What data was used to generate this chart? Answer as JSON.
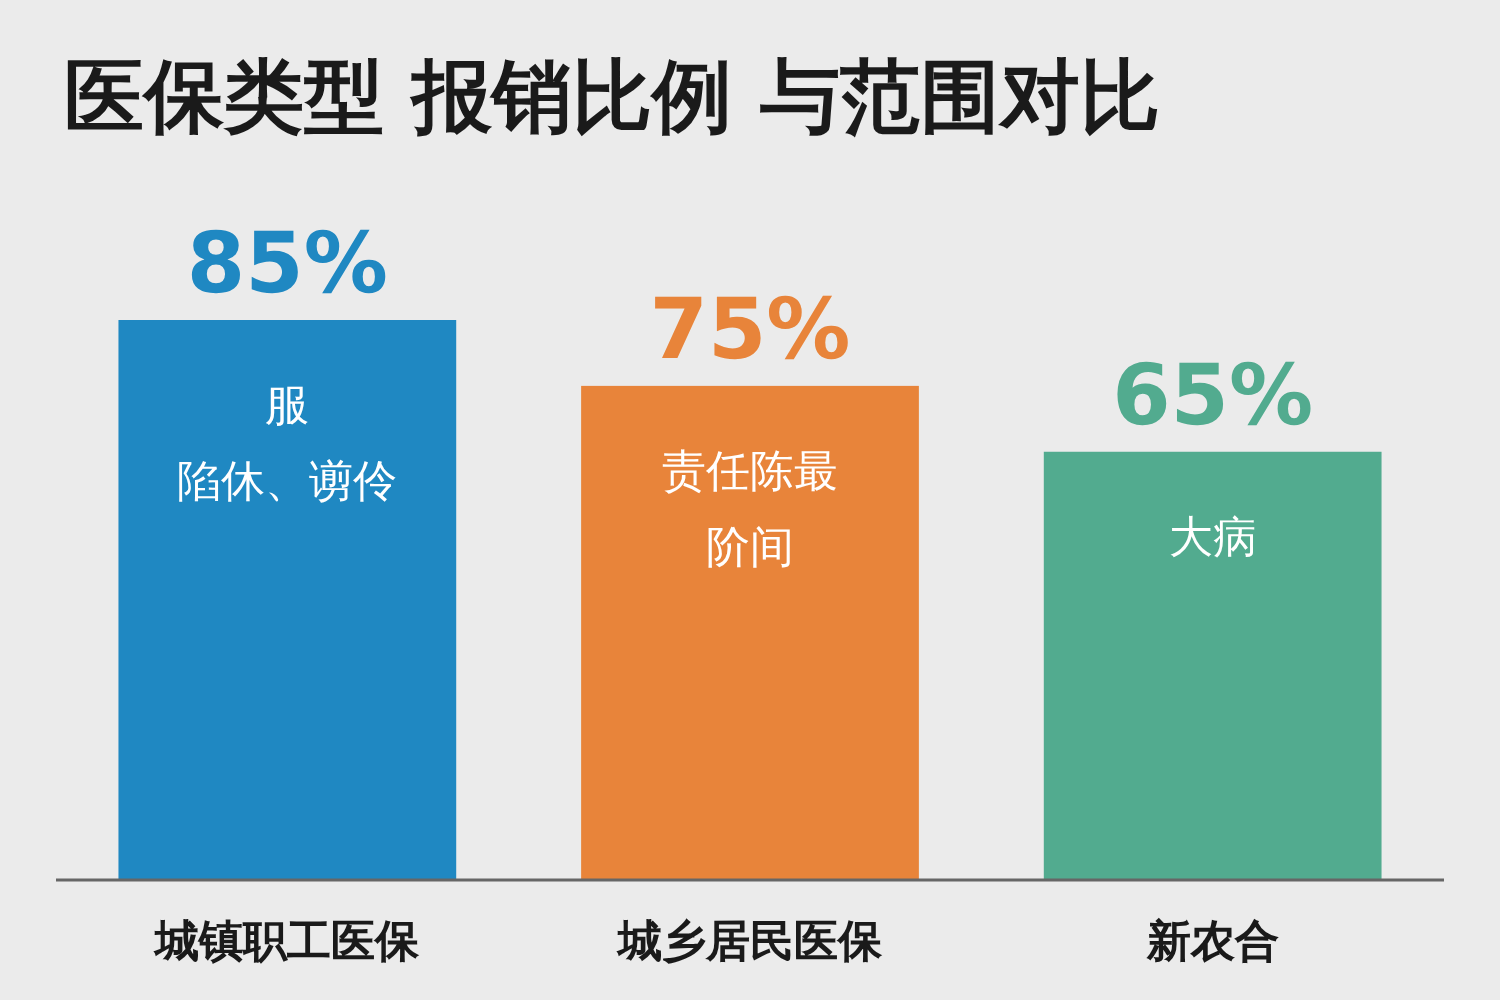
{
  "chart_data": {
    "type": "bar",
    "title": "医保类型 报销比例 与范围对比",
    "categories": [
      "城镇职工医保",
      "城乡居民医保",
      "新农合"
    ],
    "values": [
      85,
      75,
      65
    ],
    "colors": [
      "#1f88c2",
      "#e8843a",
      "#52ab8f"
    ],
    "value_labels": [
      "85%",
      "75%",
      "65%"
    ],
    "annotations": [
      "服",
      "陷休、谫伶",
      "责任陈最",
      "阶间",
      "大病"
    ]
  }
}
